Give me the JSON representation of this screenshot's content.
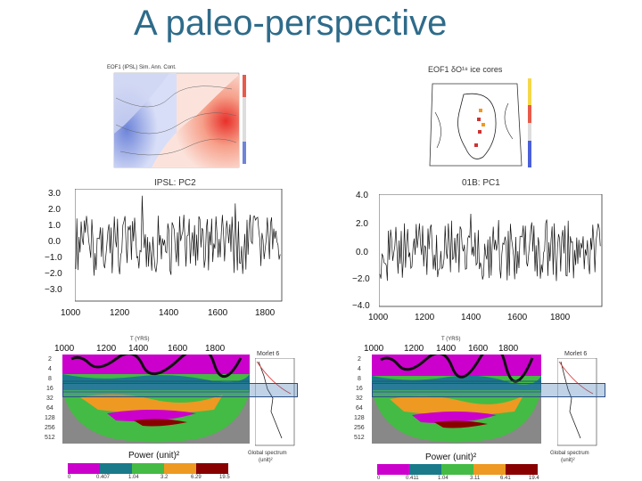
{
  "slide": {
    "title": "A paleo-perspective"
  },
  "map_left": {
    "caption": "EOF1 (IPSL) Sim. Ann. Cont."
  },
  "map_right": {
    "caption": "EOF1 δO¹⁸ ice cores"
  },
  "ts_left": {
    "title": "IPSL: PC2",
    "y_ticks": [
      "3.0",
      "2.0",
      "1.0",
      "0.0",
      "−1.0",
      "−2.0",
      "−3.0"
    ],
    "x_ticks": [
      "1000",
      "1200",
      "1400",
      "1600",
      "1800"
    ]
  },
  "ts_right": {
    "title": "01B: PC1",
    "y_ticks": [
      "4.0",
      "2.0",
      "0.0",
      "−2.0",
      "−4.0"
    ],
    "x_ticks": [
      "1000",
      "1200",
      "1400",
      "1600",
      "1800"
    ]
  },
  "wavelet_left": {
    "x_ticks": [
      "1000",
      "1200",
      "1400",
      "1600",
      "1800"
    ],
    "x_label": "T (YRS)",
    "periods": [
      "2",
      "4",
      "8",
      "16",
      "32",
      "64",
      "128",
      "256",
      "512"
    ],
    "power_label": "Power (unit)²",
    "colorbar_ticks": [
      "0",
      "0.407",
      "1.04",
      "3.2",
      "6.29",
      "19.5"
    ],
    "spectrum_title": "Morlet 6",
    "spectrum_label": "Global spectrum",
    "spectrum_unit": "(unit)²"
  },
  "wavelet_right": {
    "x_ticks": [
      "1000",
      "1200",
      "1400",
      "1600",
      "1800"
    ],
    "x_label": "T (YRS)",
    "periods": [
      "2",
      "4",
      "8",
      "16",
      "32",
      "64",
      "128",
      "256",
      "512"
    ],
    "power_label": "Power (unit)²",
    "colorbar_ticks": [
      "0",
      "0.411",
      "1.04",
      "3.11",
      "6.41",
      "19.4"
    ],
    "spectrum_title": "Morlet 6",
    "spectrum_label": "Global spectrum",
    "spectrum_unit": "(unit)²"
  },
  "colors": {
    "title": "#2e6b8a",
    "highlight_band": "#4a7fb5",
    "colorbar": [
      "#cc00cc",
      "#1a7a8a",
      "#44bb44",
      "#ee9922",
      "#880000"
    ]
  }
}
